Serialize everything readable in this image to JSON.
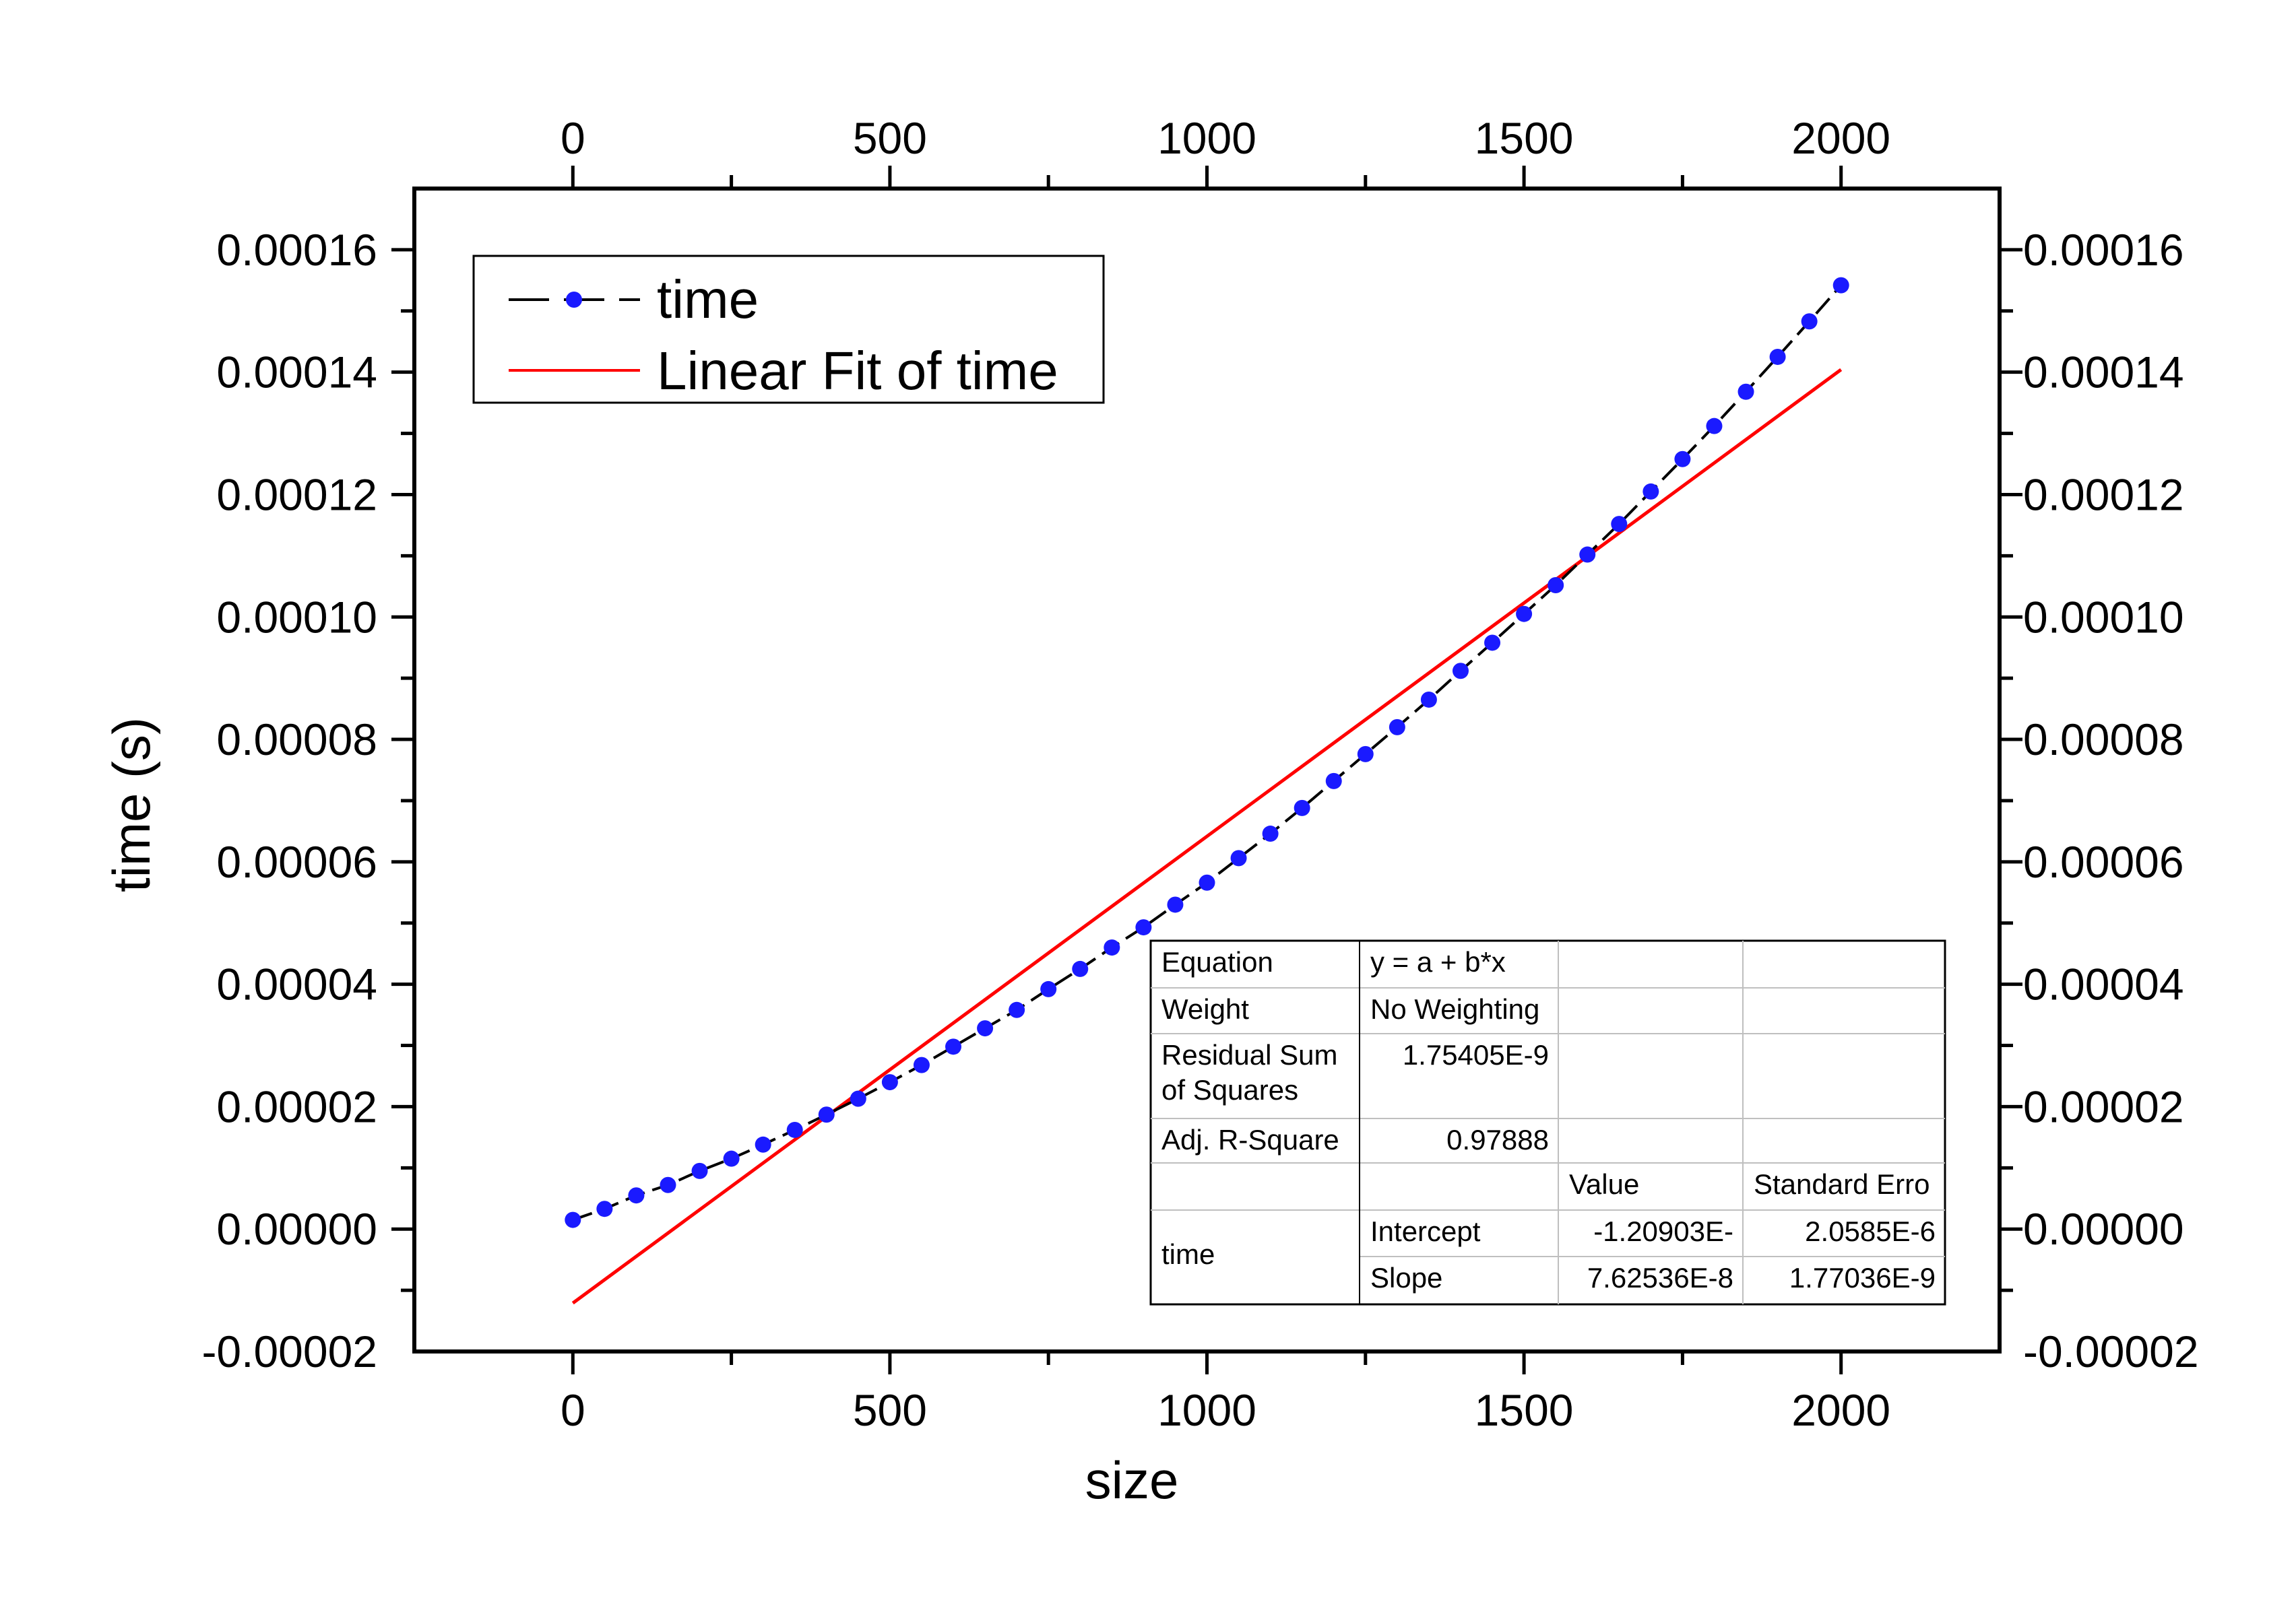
{
  "chart_data": {
    "type": "scatter",
    "xlabel": "size",
    "ylabel": "time (s)",
    "xlim": [
      -250,
      2250
    ],
    "ylim": [
      -2e-05,
      0.00017
    ],
    "x_ticks": [
      0,
      500,
      1000,
      1500,
      2000
    ],
    "x_tick_labels": [
      "0",
      "500",
      "1000",
      "1500",
      "2000"
    ],
    "y_ticks": [
      -2e-05,
      0,
      2e-05,
      4e-05,
      6e-05,
      8e-05,
      0.0001,
      0.00012,
      0.00014,
      0.00016
    ],
    "y_tick_labels": [
      "-0.00002",
      "0.00000",
      "0.00002",
      "0.00004",
      "0.00006",
      "0.00008",
      "0.00010",
      "0.00012",
      "0.00014",
      "0.00016"
    ],
    "grid": false,
    "legend_position": "top-left",
    "series": [
      {
        "name": "time",
        "style": "dashed line with circle markers",
        "color": "#1a1aff",
        "line_color": "#000000",
        "x": [
          0,
          50,
          100,
          150,
          200,
          250,
          300,
          350,
          400,
          450,
          500,
          550,
          600,
          650,
          700,
          750,
          800,
          850,
          900,
          950,
          1000,
          1050,
          1100,
          1150,
          1200,
          1250,
          1300,
          1350,
          1400,
          1450,
          1500,
          1550,
          1600,
          1650,
          1700,
          1750,
          1800,
          1850,
          1900,
          1950,
          2000
        ],
        "y": [
          1.5e-06,
          3.3e-06,
          5.5e-06,
          7.2e-06,
          9.5e-06,
          1.15e-05,
          1.38e-05,
          1.62e-05,
          1.87e-05,
          2.13e-05,
          2.4e-05,
          2.68e-05,
          2.98e-05,
          3.28e-05,
          3.58e-05,
          3.92e-05,
          4.25e-05,
          4.6e-05,
          4.93e-05,
          5.3e-05,
          5.66e-05,
          6.06e-05,
          6.46e-05,
          6.88e-05,
          7.32e-05,
          7.76e-05,
          8.2e-05,
          8.65e-05,
          9.12e-05,
          9.58e-05,
          0.0001005,
          0.0001052,
          0.0001102,
          0.0001152,
          0.0001205,
          0.0001258,
          0.0001312,
          0.0001368,
          0.0001425,
          0.0001483,
          0.0001542
        ]
      },
      {
        "name": "Linear Fit of time",
        "style": "line",
        "color": "#ff0000",
        "intercept": -1.20903e-05,
        "slope": 7.62536e-08,
        "x_range": [
          0,
          2000
        ]
      }
    ],
    "fit_table": {
      "rows": [
        [
          "Equation",
          "y = a + b*x",
          "",
          ""
        ],
        [
          "Weight",
          "No Weighting",
          "",
          ""
        ],
        [
          "Residual Sum\nof Squares",
          "1.75405E-9",
          "",
          ""
        ],
        [
          "Adj. R-Square",
          "0.97888",
          "",
          ""
        ],
        [
          "",
          "",
          "Value",
          "Standard Erro"
        ],
        [
          "time",
          "Intercept",
          "-1.20903E-",
          "2.0585E-6"
        ],
        [
          "",
          "Slope",
          "7.62536E-8",
          "1.77036E-9"
        ]
      ]
    }
  }
}
